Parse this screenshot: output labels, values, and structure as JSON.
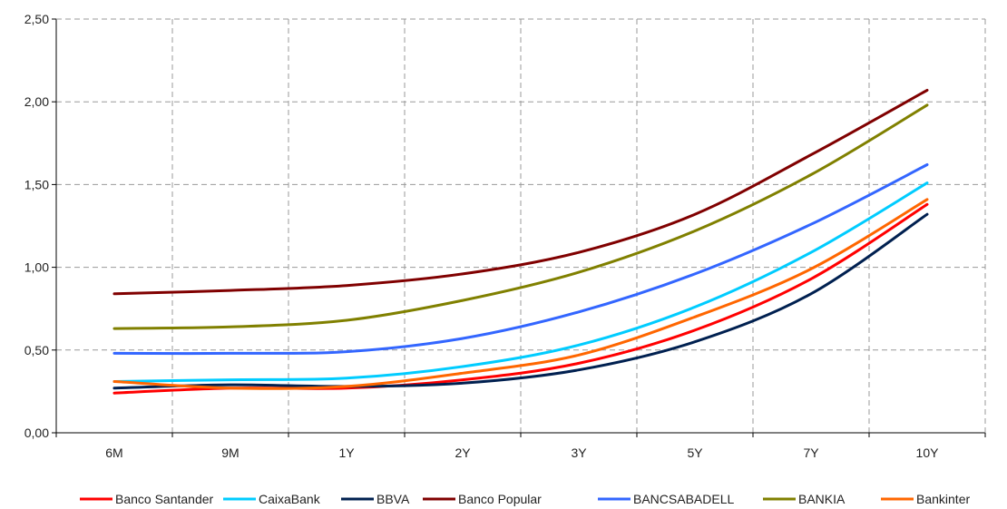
{
  "chart_data": {
    "type": "line",
    "title": "",
    "xlabel": "",
    "ylabel": "",
    "x_tick_labels": [
      "6M",
      "9M",
      "1Y",
      "2Y",
      "3Y",
      "5Y",
      "7Y",
      "10Y"
    ],
    "y_tick_labels": [
      "0,00",
      "0,50",
      "1,00",
      "1,50",
      "2,00",
      "2,50"
    ],
    "y_ticks": [
      0,
      0.5,
      1.0,
      1.5,
      2.0,
      2.5
    ],
    "ylim": [
      0,
      2.5
    ],
    "grid": true,
    "legend_position": "bottom",
    "x": [
      "6M",
      "9M",
      "1Y",
      "2Y",
      "3Y",
      "5Y",
      "7Y",
      "10Y"
    ],
    "series": [
      {
        "name": "Banco Santander",
        "color": "#ff0000",
        "values": [
          0.24,
          0.27,
          0.27,
          0.32,
          0.42,
          0.62,
          0.93,
          1.38
        ]
      },
      {
        "name": "CaixaBank",
        "color": "#00ccff",
        "values": [
          0.31,
          0.32,
          0.33,
          0.4,
          0.53,
          0.76,
          1.09,
          1.51
        ]
      },
      {
        "name": "BBVA",
        "color": "#002050",
        "values": [
          0.27,
          0.29,
          0.28,
          0.3,
          0.38,
          0.55,
          0.84,
          1.32
        ]
      },
      {
        "name": "Banco Popular",
        "color": "#800000",
        "values": [
          0.84,
          0.86,
          0.89,
          0.96,
          1.09,
          1.32,
          1.68,
          2.07
        ]
      },
      {
        "name": "BANCSABADELL",
        "color": "#3366ff",
        "values": [
          0.48,
          0.48,
          0.49,
          0.57,
          0.73,
          0.96,
          1.26,
          1.62
        ]
      },
      {
        "name": "BANKIA",
        "color": "#808000",
        "values": [
          0.63,
          0.64,
          0.68,
          0.8,
          0.97,
          1.22,
          1.56,
          1.98
        ]
      },
      {
        "name": "Bankinter",
        "color": "#ff6600",
        "values": [
          0.31,
          0.27,
          0.28,
          0.36,
          0.47,
          0.7,
          0.99,
          1.41
        ]
      }
    ]
  }
}
